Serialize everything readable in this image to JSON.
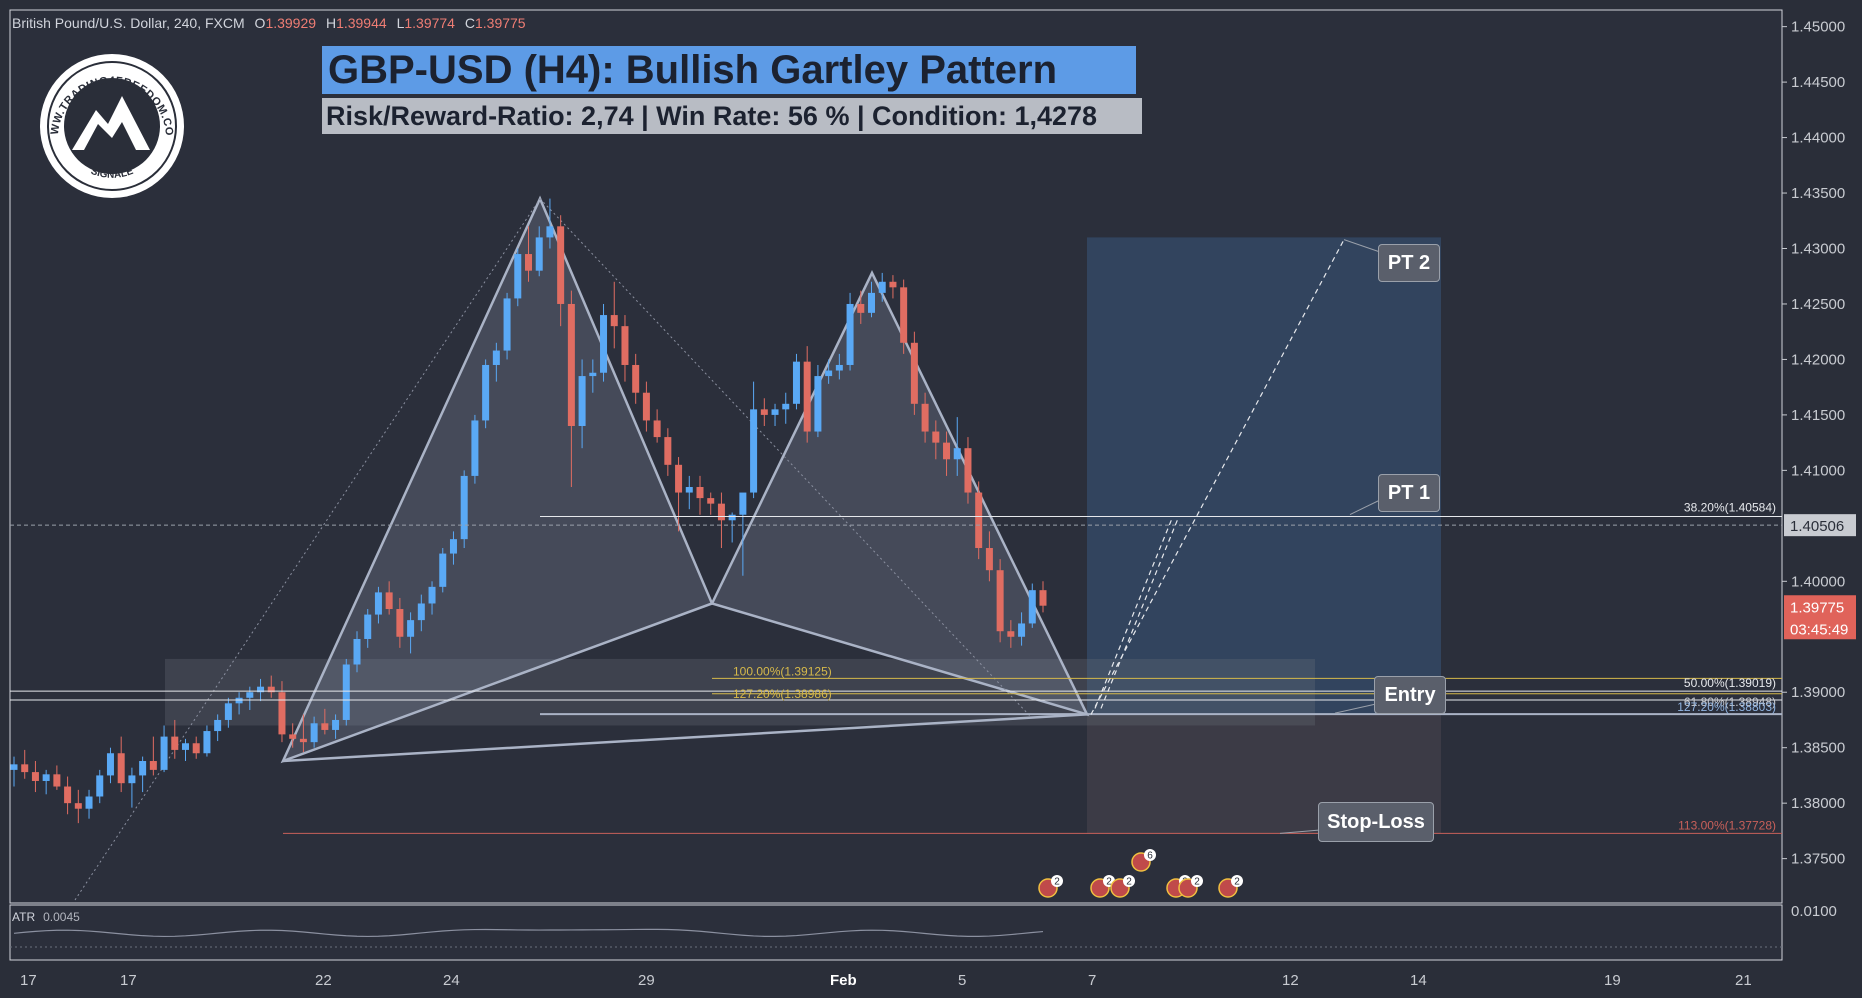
{
  "header": {
    "symbol": "British Pound/U.S. Dollar, 240, FXCM",
    "o_label": "O",
    "o_value": "1.39929",
    "h_label": "H",
    "h_value": "1.39944",
    "l_label": "L",
    "l_value": "1.39774",
    "c_label": "C",
    "c_value": "1.39775"
  },
  "logo": {
    "top_text": "WWW.TRADING4FREEDOM.COM",
    "bottom_text": "SIGNALE"
  },
  "banner": {
    "title": "GBP-USD (H4): Bullish Gartley Pattern",
    "subtitle": "Risk/Reward-Ratio: 2,74 | Win Rate: 56 % | Condition: 1,4278"
  },
  "callouts": {
    "pt2": "PT 2",
    "pt1": "PT 1",
    "entry": "Entry",
    "stop_loss": "Stop-Loss"
  },
  "fib_labels": {
    "l100": "100.00%(1.39125)",
    "l127a": "127.20%(1.38986)",
    "l382": "38.20%(1.40584)",
    "l50": "50.00%(1.39019)",
    "l618": "61.80%(1.38948)",
    "l127b": "127.20%(1.38803)",
    "l113": "113.00%(1.37728)"
  },
  "price_axis": {
    "ticks": [
      "1.45000",
      "1.44500",
      "1.44000",
      "1.43500",
      "1.43000",
      "1.42500",
      "1.42000",
      "1.41500",
      "1.41000",
      "1.40000",
      "1.39000",
      "1.38500",
      "1.38000",
      "1.37500"
    ],
    "current_line": "1.40506",
    "last_price": "1.39775",
    "countdown": "03:45:49"
  },
  "time_axis": [
    "17",
    "17",
    "22",
    "24",
    "29",
    "Feb",
    "5",
    "7",
    "12",
    "14",
    "19",
    "21"
  ],
  "atr": {
    "label": "ATR",
    "value": "0.0045",
    "axis_tick": "0.0100"
  },
  "events": [
    "2",
    "2",
    "2",
    "6",
    "3",
    "2",
    "2"
  ],
  "colors": {
    "up": "#5aa9f5",
    "down": "#e06d62",
    "background": "#2a2e39",
    "title_bg": "#5d9be6"
  },
  "chart_data": {
    "type": "candlestick",
    "y_range": [
      1.371,
      1.4515
    ],
    "time_labels": [
      "17",
      "17",
      "22",
      "24",
      "29",
      "Feb",
      "5",
      "7",
      "12",
      "14",
      "19",
      "21"
    ],
    "pattern": {
      "name": "Bullish Gartley",
      "X": 1.3838,
      "A": 1.4345,
      "B": 1.398,
      "C": 1.4278,
      "D": 1.388
    },
    "levels": {
      "pt2": 1.4308,
      "pt1": 1.40584,
      "current": 1.40506,
      "entry": 1.38803,
      "stop_loss": 1.37728,
      "fib_100": 1.39125,
      "fib_127_2": 1.38986,
      "fib_50": 1.39019,
      "fib_61_8": 1.38948
    },
    "candles": [
      [
        1.383,
        1.3842,
        1.3815,
        1.3835
      ],
      [
        1.3835,
        1.3848,
        1.3822,
        1.3828
      ],
      [
        1.3828,
        1.3838,
        1.381,
        1.382
      ],
      [
        1.382,
        1.383,
        1.3808,
        1.3826
      ],
      [
        1.3826,
        1.3834,
        1.3812,
        1.3815
      ],
      [
        1.3815,
        1.3824,
        1.379,
        1.38
      ],
      [
        1.38,
        1.3812,
        1.3782,
        1.3795
      ],
      [
        1.3795,
        1.3812,
        1.3786,
        1.3806
      ],
      [
        1.3806,
        1.383,
        1.38,
        1.3825
      ],
      [
        1.3825,
        1.385,
        1.3818,
        1.3845
      ],
      [
        1.3845,
        1.386,
        1.381,
        1.3818
      ],
      [
        1.3818,
        1.3832,
        1.3796,
        1.3825
      ],
      [
        1.3825,
        1.3842,
        1.381,
        1.3838
      ],
      [
        1.3838,
        1.386,
        1.3825,
        1.383
      ],
      [
        1.383,
        1.387,
        1.3828,
        1.386
      ],
      [
        1.386,
        1.3875,
        1.384,
        1.3848
      ],
      [
        1.3848,
        1.3858,
        1.3838,
        1.3854
      ],
      [
        1.3854,
        1.386,
        1.384,
        1.3845
      ],
      [
        1.3845,
        1.387,
        1.3842,
        1.3865
      ],
      [
        1.3865,
        1.388,
        1.3856,
        1.3875
      ],
      [
        1.3875,
        1.3895,
        1.3868,
        1.389
      ],
      [
        1.389,
        1.39,
        1.388,
        1.3895
      ],
      [
        1.3895,
        1.3905,
        1.3884,
        1.39
      ],
      [
        1.39,
        1.3912,
        1.3892,
        1.3905
      ],
      [
        1.3905,
        1.3915,
        1.3895,
        1.39
      ],
      [
        1.39,
        1.391,
        1.3855,
        1.3862
      ],
      [
        1.3862,
        1.3872,
        1.385,
        1.3858
      ],
      [
        1.3858,
        1.388,
        1.3846,
        1.3855
      ],
      [
        1.3855,
        1.3878,
        1.385,
        1.3872
      ],
      [
        1.3872,
        1.3885,
        1.3862,
        1.3866
      ],
      [
        1.3866,
        1.388,
        1.3858,
        1.3875
      ],
      [
        1.3875,
        1.393,
        1.387,
        1.3925
      ],
      [
        1.3925,
        1.3955,
        1.3918,
        1.3948
      ],
      [
        1.3948,
        1.3975,
        1.394,
        1.397
      ],
      [
        1.397,
        1.3995,
        1.3962,
        1.399
      ],
      [
        1.399,
        1.4,
        1.397,
        1.3975
      ],
      [
        1.3975,
        1.3985,
        1.394,
        1.395
      ],
      [
        1.395,
        1.3972,
        1.3935,
        1.3965
      ],
      [
        1.3965,
        1.3988,
        1.3955,
        1.398
      ],
      [
        1.398,
        1.4,
        1.397,
        1.3995
      ],
      [
        1.3995,
        1.403,
        1.399,
        1.4025
      ],
      [
        1.4025,
        1.4045,
        1.4015,
        1.4038
      ],
      [
        1.4038,
        1.41,
        1.403,
        1.4095
      ],
      [
        1.4095,
        1.415,
        1.4088,
        1.4145
      ],
      [
        1.4145,
        1.42,
        1.4138,
        1.4195
      ],
      [
        1.4195,
        1.4215,
        1.418,
        1.4208
      ],
      [
        1.4208,
        1.426,
        1.42,
        1.4255
      ],
      [
        1.4255,
        1.43,
        1.4248,
        1.4295
      ],
      [
        1.4295,
        1.432,
        1.427,
        1.428
      ],
      [
        1.428,
        1.432,
        1.4275,
        1.431
      ],
      [
        1.431,
        1.4345,
        1.43,
        1.432
      ],
      [
        1.432,
        1.433,
        1.423,
        1.425
      ],
      [
        1.425,
        1.4262,
        1.4085,
        1.414
      ],
      [
        1.414,
        1.42,
        1.412,
        1.4185
      ],
      [
        1.4185,
        1.42,
        1.417,
        1.4188
      ],
      [
        1.4188,
        1.425,
        1.418,
        1.424
      ],
      [
        1.424,
        1.427,
        1.421,
        1.423
      ],
      [
        1.423,
        1.424,
        1.418,
        1.4195
      ],
      [
        1.4195,
        1.4205,
        1.416,
        1.417
      ],
      [
        1.417,
        1.418,
        1.4135,
        1.4145
      ],
      [
        1.4145,
        1.4155,
        1.4125,
        1.413
      ],
      [
        1.413,
        1.4138,
        1.4095,
        1.4105
      ],
      [
        1.4105,
        1.4112,
        1.4045,
        1.408
      ],
      [
        1.408,
        1.4095,
        1.4065,
        1.4085
      ],
      [
        1.4085,
        1.4095,
        1.406,
        1.4075
      ],
      [
        1.4075,
        1.408,
        1.406,
        1.407
      ],
      [
        1.407,
        1.408,
        1.403,
        1.4055
      ],
      [
        1.4055,
        1.4062,
        1.4035,
        1.406
      ],
      [
        1.406,
        1.4075,
        1.4005,
        1.408
      ],
      [
        1.408,
        1.418,
        1.4075,
        1.4155
      ],
      [
        1.4155,
        1.4165,
        1.414,
        1.415
      ],
      [
        1.415,
        1.416,
        1.414,
        1.4155
      ],
      [
        1.4155,
        1.417,
        1.4142,
        1.416
      ],
      [
        1.416,
        1.4205,
        1.4155,
        1.4198
      ],
      [
        1.4198,
        1.4212,
        1.4125,
        1.4135
      ],
      [
        1.4135,
        1.4195,
        1.413,
        1.4185
      ],
      [
        1.4185,
        1.42,
        1.4178,
        1.419
      ],
      [
        1.419,
        1.4205,
        1.4182,
        1.4195
      ],
      [
        1.4195,
        1.426,
        1.419,
        1.425
      ],
      [
        1.425,
        1.4262,
        1.4232,
        1.4242
      ],
      [
        1.4242,
        1.427,
        1.4238,
        1.426
      ],
      [
        1.426,
        1.4278,
        1.4252,
        1.427
      ],
      [
        1.427,
        1.4276,
        1.4255,
        1.4265
      ],
      [
        1.4265,
        1.4272,
        1.4205,
        1.4215
      ],
      [
        1.4215,
        1.4225,
        1.415,
        1.416
      ],
      [
        1.416,
        1.417,
        1.4125,
        1.4135
      ],
      [
        1.4135,
        1.4145,
        1.411,
        1.4125
      ],
      [
        1.4125,
        1.4135,
        1.4095,
        1.411
      ],
      [
        1.411,
        1.4148,
        1.4095,
        1.412
      ],
      [
        1.412,
        1.413,
        1.407,
        1.408
      ],
      [
        1.408,
        1.409,
        1.402,
        1.403
      ],
      [
        1.403,
        1.4045,
        1.4,
        1.401
      ],
      [
        1.401,
        1.402,
        1.3945,
        1.3955
      ],
      [
        1.3955,
        1.3965,
        1.394,
        1.395
      ],
      [
        1.395,
        1.3972,
        1.3942,
        1.3962
      ],
      [
        1.3962,
        1.3998,
        1.3958,
        1.3992
      ],
      [
        1.3992,
        1.4,
        1.3972,
        1.3978
      ]
    ]
  }
}
